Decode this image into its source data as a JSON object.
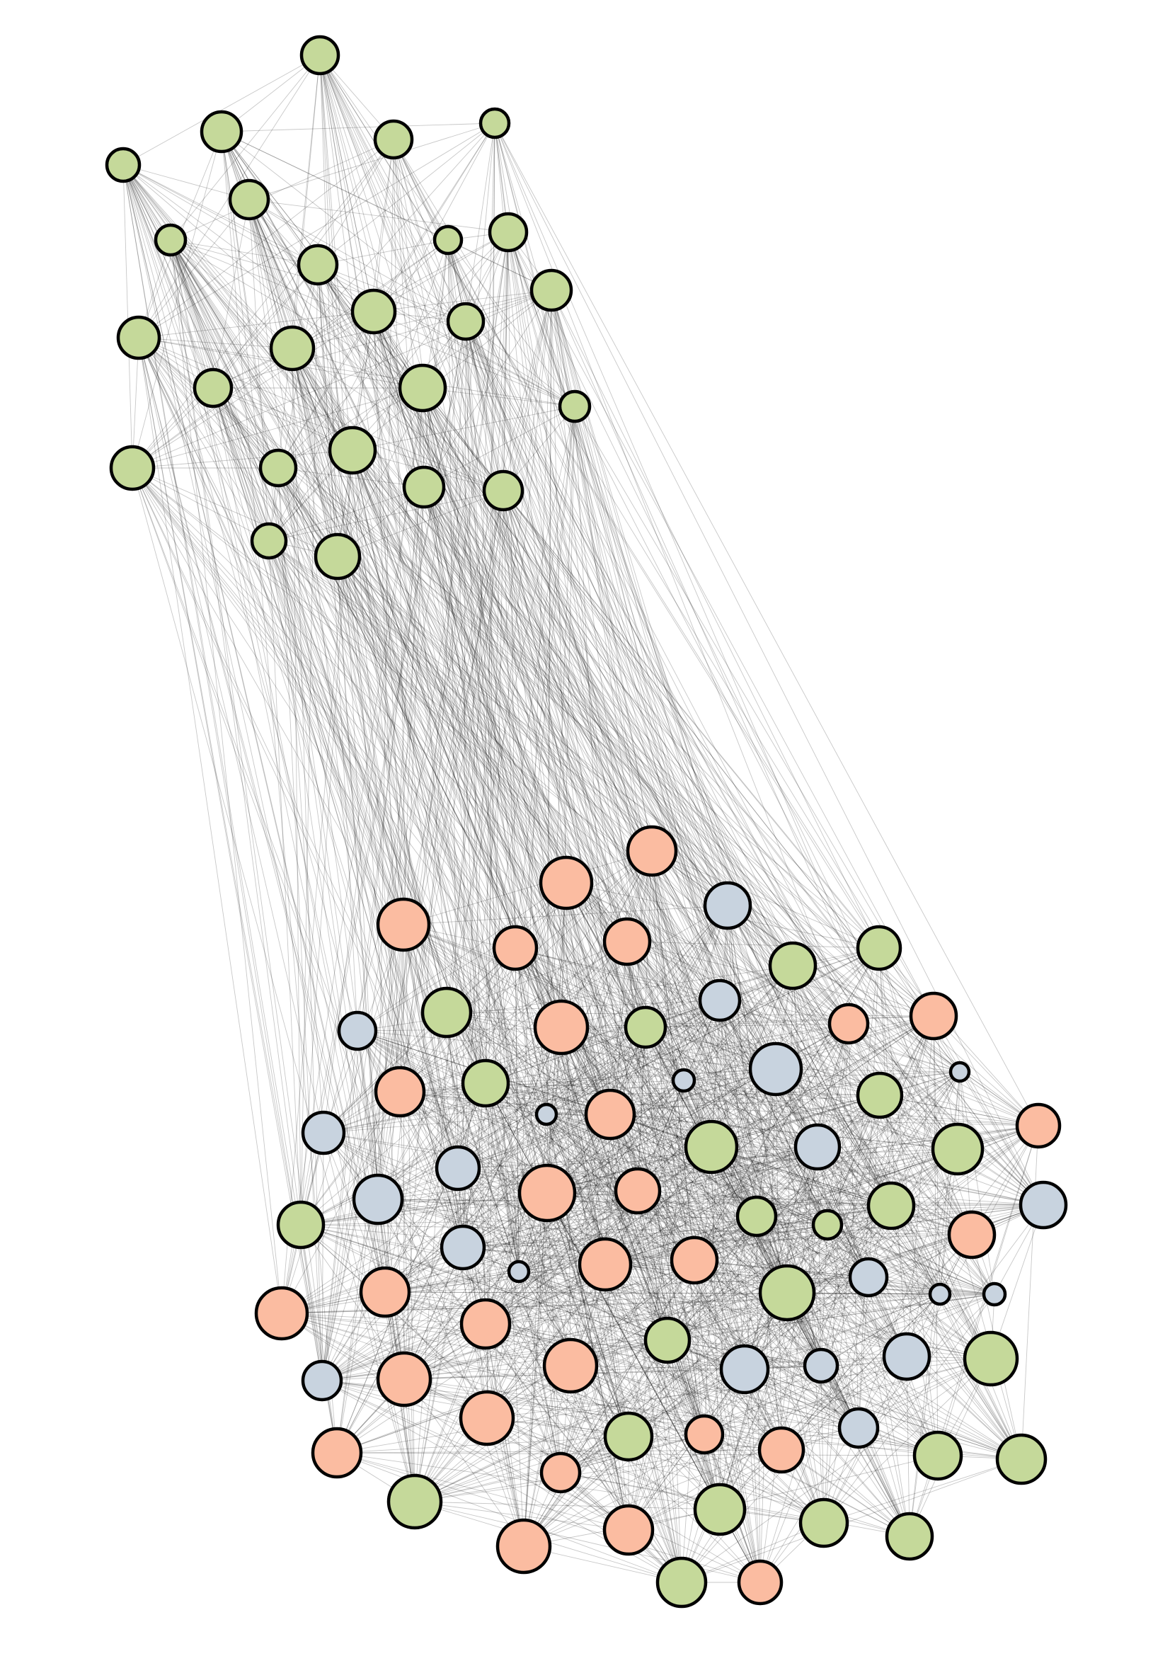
{
  "colors": {
    "green": "#c5d99a",
    "salmon": "#fbbca1",
    "blue": "#c8d3df",
    "outline": "#000000",
    "edge": "#000000",
    "background": "#ffffff"
  },
  "groups": [
    {
      "id": "upper-cluster",
      "color": "green"
    },
    {
      "id": "lower-cluster",
      "colors": [
        "salmon",
        "green",
        "blue"
      ]
    }
  ],
  "edges_visible": true
}
